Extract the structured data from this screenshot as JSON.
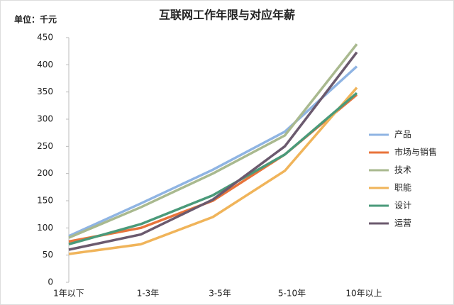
{
  "chart_data": {
    "type": "line",
    "title": "互联网工作年限与对应年薪",
    "unit_label": "单位：千元",
    "categories": [
      "1年以下",
      "1-3年",
      "3-5年",
      "5-10年",
      "10年以上"
    ],
    "series": [
      {
        "name": "产品",
        "color": "#8fb4e3",
        "values": [
          85,
          145,
          207,
          277,
          397
        ]
      },
      {
        "name": "市场与销售",
        "color": "#e8743b",
        "values": [
          75,
          100,
          150,
          235,
          345
        ]
      },
      {
        "name": "技术",
        "color": "#a9b98f",
        "values": [
          82,
          138,
          200,
          270,
          438
        ]
      },
      {
        "name": "职能",
        "color": "#f0b45a",
        "values": [
          52,
          70,
          120,
          205,
          358
        ]
      },
      {
        "name": "设计",
        "color": "#4a9a7a",
        "values": [
          70,
          107,
          160,
          235,
          348
        ]
      },
      {
        "name": "运营",
        "color": "#6b5a6e",
        "values": [
          60,
          88,
          152,
          250,
          423
        ]
      }
    ],
    "ylim": [
      0,
      450
    ],
    "yticks": [
      0,
      50,
      100,
      150,
      200,
      250,
      300,
      350,
      400,
      450
    ],
    "grid": false,
    "legend": "right"
  }
}
